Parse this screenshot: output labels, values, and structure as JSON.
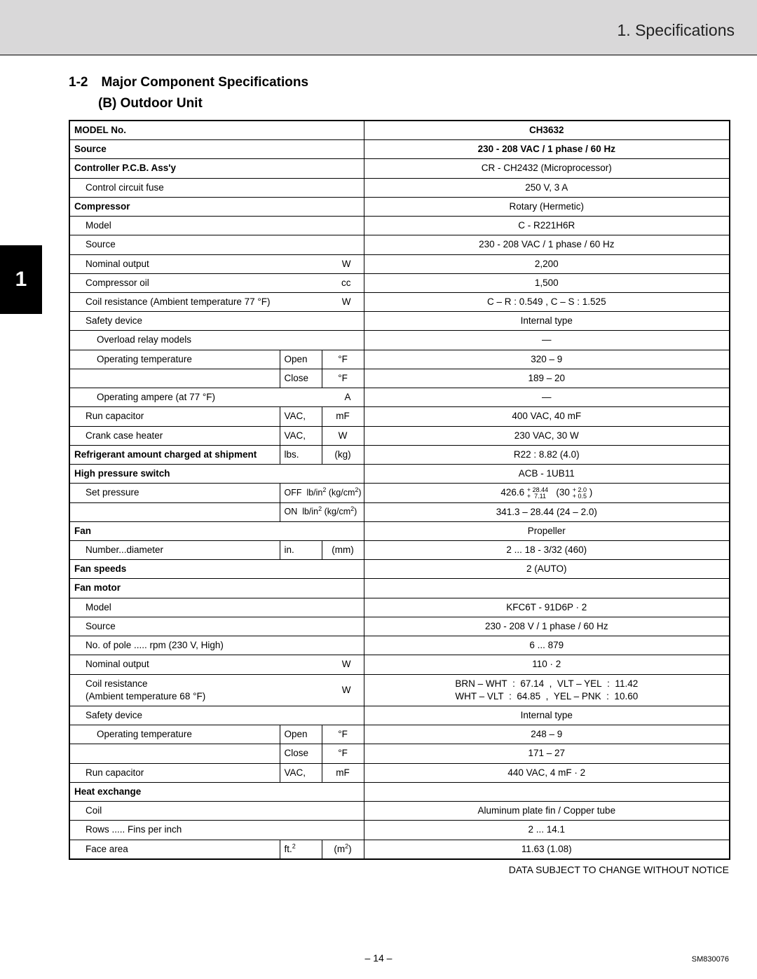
{
  "page": {
    "header": "1. Specifications",
    "section_num": "1-2",
    "section_title": "Major Component Specifications",
    "subsection": "(B)   Outdoor Unit",
    "footer_note": "DATA SUBJECT TO CHANGE WITHOUT NOTICE",
    "page_num": "– 14 –",
    "doc_id": "SM830076",
    "side_tab": "1"
  },
  "table": {
    "rows": [
      {
        "label": "MODEL No.",
        "label_bold": true,
        "value": "CH3632",
        "value_bold": true
      },
      {
        "label": "Source",
        "label_bold": true,
        "value": "230 - 208 VAC / 1 phase / 60 Hz",
        "value_bold": true
      },
      {
        "label": "Controller P.C.B. Ass'y",
        "label_bold": true,
        "value": "CR - CH2432 (Microprocessor)"
      },
      {
        "label": "Control circuit fuse",
        "indent": 1,
        "value": "250 V, 3 A"
      },
      {
        "label": "Compressor",
        "label_bold": true,
        "value": "Rotary (Hermetic)"
      },
      {
        "label": "Model",
        "indent": 1,
        "value": "C - R221H6R"
      },
      {
        "label": "Source",
        "indent": 1,
        "value": "230 - 208 VAC / 1 phase / 60 Hz"
      },
      {
        "label": "Nominal output",
        "indent": 1,
        "unit": "W",
        "value": "2,200"
      },
      {
        "label": "Compressor oil",
        "indent": 1,
        "unit": "cc",
        "value": "1,500"
      },
      {
        "label": "Coil resistance (Ambient temperature 77 °F)",
        "indent": 1,
        "unit": "W",
        "value": "C – R : 0.549 , C – S : 1.525"
      },
      {
        "label": "Safety device",
        "indent": 1,
        "value": "Internal type"
      },
      {
        "label": "Overload relay models",
        "indent": 2,
        "value": "—"
      },
      {
        "label": "Operating temperature",
        "indent": 2,
        "unit_split": true,
        "u1": "Open",
        "u2": "°F",
        "value": "320  –   9"
      },
      {
        "label": "",
        "indent": 2,
        "empty_label": true,
        "unit_split": true,
        "u1": "Close",
        "u2": "°F",
        "value": "189  –  20"
      },
      {
        "label": "Operating ampere (at 77 °F)",
        "indent": 2,
        "unit": "A",
        "value": "—"
      },
      {
        "label": "Run capacitor",
        "indent": 1,
        "unit_split": true,
        "u1": "VAC,",
        "u2": "mF",
        "value": "400 VAC, 40 mF"
      },
      {
        "label": "Crank case heater",
        "indent": 1,
        "unit_split": true,
        "u1": "VAC,",
        "u2": "W",
        "value": "230 VAC, 30 W"
      },
      {
        "label": "Refrigerant amount charged at shipment",
        "label_bold": true,
        "unit_split": true,
        "u1": "lbs.",
        "u2": "(kg)",
        "value": "R22 : 8.82 (4.0)"
      },
      {
        "label": "High pressure switch",
        "label_bold": true,
        "value": "ACB - 1UB11"
      },
      {
        "label": "Set pressure",
        "indent": 1,
        "unit_off": true,
        "value_html": "426.6 <span class='frac'><span>+ 28.44</span><span>+&nbsp;&nbsp;7.11</span></span>&nbsp;&nbsp;&nbsp;(30 <span class='frac'><span>+ 2.0</span><span>+ 0.5</span></span> )"
      },
      {
        "label": "",
        "indent": 1,
        "empty_label": true,
        "unit_on": true,
        "value": "341.3  –  28.44 (24  –  2.0)"
      },
      {
        "label": "Fan",
        "label_bold": true,
        "value": "Propeller"
      },
      {
        "label": "Number...diameter",
        "indent": 1,
        "unit_split": true,
        "u1": "in.",
        "u2": "(mm)",
        "value": "2 ... 18 - 3/32 (460)"
      },
      {
        "label": "Fan speeds",
        "label_bold": true,
        "value": "2 (AUTO)"
      },
      {
        "label": "Fan motor",
        "label_bold": true,
        "value": ""
      },
      {
        "label": "Model",
        "indent": 1,
        "value": "KFC6T - 91D6P · 2"
      },
      {
        "label": "Source",
        "indent": 1,
        "value": "230 - 208 V / 1 phase / 60 Hz"
      },
      {
        "label": "No. of pole ..... rpm (230 V, High)",
        "indent": 1,
        "value": "6 ... 879"
      },
      {
        "label": "Nominal output",
        "indent": 1,
        "unit": "W",
        "value": "110 · 2"
      },
      {
        "label": "Coil resistance\n(Ambient temperature 68 °F)",
        "indent": 1,
        "unit": "W",
        "value_html": "BRN – WHT&nbsp;&nbsp;:&nbsp;&nbsp;67.14&nbsp;&nbsp;,&nbsp;&nbsp;VLT – YEL&nbsp;&nbsp;:&nbsp;&nbsp;11.42<br>WHT – VLT&nbsp;&nbsp;:&nbsp;&nbsp;64.85&nbsp;&nbsp;,&nbsp;&nbsp;YEL – PNK&nbsp;&nbsp;:&nbsp;&nbsp;10.60"
      },
      {
        "label": "Safety device",
        "indent": 1,
        "value": "Internal type"
      },
      {
        "label": "Operating temperature",
        "indent": 2,
        "unit_split": true,
        "u1": "Open",
        "u2": "°F",
        "value": "248  –   9"
      },
      {
        "label": "",
        "indent": 2,
        "empty_label": true,
        "unit_split": true,
        "u1": "Close",
        "u2": "°F",
        "value": "171  –  27"
      },
      {
        "label": "Run capacitor",
        "indent": 1,
        "unit_split": true,
        "u1": "VAC,",
        "u2": "mF",
        "value": "440 VAC, 4 mF · 2"
      },
      {
        "label": "Heat exchange",
        "label_bold": true,
        "value": ""
      },
      {
        "label": "Coil",
        "indent": 1,
        "value": "Aluminum plate fin / Copper tube"
      },
      {
        "label": "Rows ..... Fins per inch",
        "indent": 1,
        "value": "2 ... 14.1"
      },
      {
        "label": "Face area",
        "indent": 1,
        "unit_split": true,
        "u1_html": "ft.<sup>2</sup>",
        "u2_html": "(m<sup>2</sup>)",
        "value": "11.63 (1.08)"
      }
    ],
    "col_widths": {
      "label": 300,
      "u1": 60,
      "u2": 60,
      "value": 522
    }
  }
}
